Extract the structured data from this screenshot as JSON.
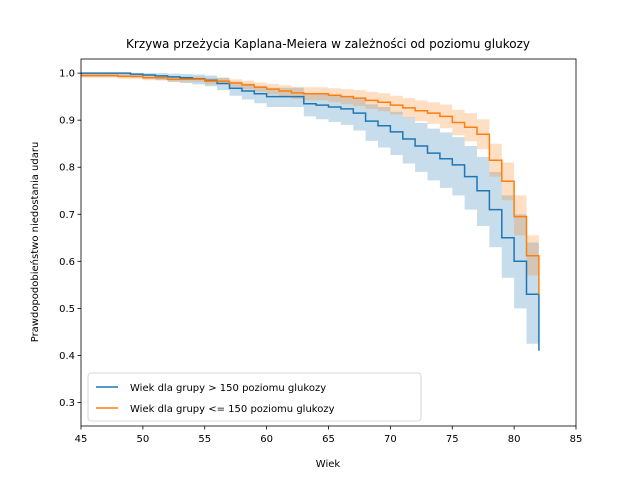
{
  "chart_data": {
    "type": "line",
    "title": "Krzywa przeżycia Kaplana-Meiera w zależności od poziomu glukozy",
    "xlabel": "Wiek",
    "ylabel": "Prawdopodobieństwo niedostania udaru",
    "xlim": [
      45,
      85
    ],
    "ylim": [
      0.25,
      1.03
    ],
    "xticks": [
      45,
      50,
      55,
      60,
      65,
      70,
      75,
      80,
      85
    ],
    "yticks": [
      0.3,
      0.4,
      0.5,
      0.6,
      0.7,
      0.8,
      0.9,
      1.0
    ],
    "legend_position": "lower-left",
    "grid": false,
    "series": [
      {
        "name": "Wiek dla grupy > 150 poziomu glukozy",
        "color": "#1f77b4",
        "x": [
          45,
          49,
          50,
          51,
          52,
          53,
          54,
          55,
          56,
          57,
          58,
          59,
          60,
          63,
          64,
          65,
          66,
          67,
          68,
          69,
          70,
          71,
          72,
          73,
          74,
          75,
          76,
          77,
          78,
          79,
          80,
          81,
          82
        ],
        "y": [
          1.0,
          0.998,
          0.996,
          0.994,
          0.992,
          0.99,
          0.988,
          0.985,
          0.978,
          0.968,
          0.962,
          0.956,
          0.95,
          0.935,
          0.932,
          0.928,
          0.924,
          0.915,
          0.898,
          0.888,
          0.875,
          0.86,
          0.845,
          0.83,
          0.818,
          0.805,
          0.78,
          0.75,
          0.71,
          0.65,
          0.6,
          0.53,
          0.41
        ],
        "ci_lower": [
          0.992,
          0.99,
          0.988,
          0.985,
          0.982,
          0.979,
          0.976,
          0.972,
          0.964,
          0.952,
          0.944,
          0.936,
          0.928,
          0.908,
          0.902,
          0.896,
          0.89,
          0.878,
          0.856,
          0.842,
          0.826,
          0.808,
          0.79,
          0.772,
          0.756,
          0.74,
          0.71,
          0.675,
          0.63,
          0.565,
          0.5,
          0.425,
          0.285
        ],
        "ci_upper": [
          1.0,
          1.0,
          1.0,
          1.0,
          0.999,
          0.998,
          0.997,
          0.995,
          0.99,
          0.982,
          0.978,
          0.973,
          0.969,
          0.958,
          0.956,
          0.954,
          0.952,
          0.946,
          0.934,
          0.928,
          0.918,
          0.906,
          0.894,
          0.882,
          0.874,
          0.864,
          0.845,
          0.822,
          0.79,
          0.74,
          0.7,
          0.64,
          0.54
        ]
      },
      {
        "name": "Wiek dla grupy <= 150 poziomu glukozy",
        "color": "#ff7f0e",
        "x": [
          45,
          48,
          50,
          52,
          55,
          57,
          58,
          59,
          60,
          61,
          62,
          63,
          65,
          66,
          67,
          68,
          69,
          70,
          71,
          72,
          73,
          74,
          75,
          76,
          77,
          78,
          79,
          80,
          81,
          82
        ],
        "y": [
          0.995,
          0.993,
          0.99,
          0.987,
          0.983,
          0.979,
          0.975,
          0.97,
          0.966,
          0.962,
          0.958,
          0.956,
          0.953,
          0.95,
          0.947,
          0.942,
          0.938,
          0.932,
          0.926,
          0.92,
          0.915,
          0.908,
          0.895,
          0.885,
          0.87,
          0.815,
          0.77,
          0.695,
          0.612,
          0.53
        ],
        "ci_lower": [
          0.99,
          0.988,
          0.985,
          0.981,
          0.976,
          0.971,
          0.966,
          0.96,
          0.955,
          0.95,
          0.945,
          0.942,
          0.938,
          0.934,
          0.93,
          0.924,
          0.919,
          0.912,
          0.905,
          0.898,
          0.892,
          0.883,
          0.868,
          0.855,
          0.838,
          0.78,
          0.73,
          0.655,
          0.57,
          0.52
        ],
        "ci_upper": [
          1.0,
          0.998,
          0.995,
          0.993,
          0.99,
          0.987,
          0.984,
          0.98,
          0.977,
          0.974,
          0.971,
          0.97,
          0.968,
          0.966,
          0.964,
          0.96,
          0.957,
          0.952,
          0.947,
          0.942,
          0.938,
          0.933,
          0.922,
          0.915,
          0.902,
          0.85,
          0.81,
          0.74,
          0.655,
          0.54
        ]
      }
    ]
  }
}
